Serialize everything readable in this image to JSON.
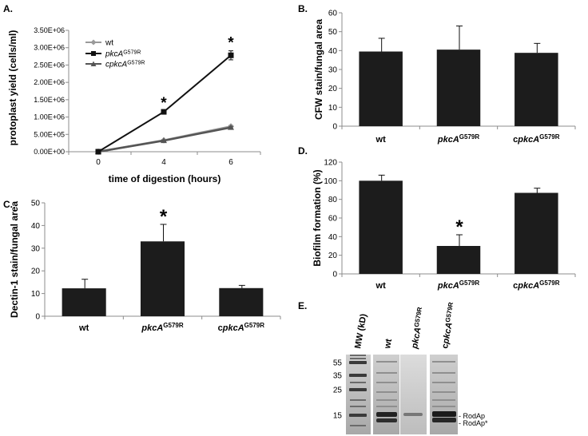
{
  "chart_data": [
    {
      "panel": "A.",
      "type": "line",
      "xlabel": "time of digestion (hours)",
      "ylabel": "protoplast yield (cells/ml)",
      "x": [
        0,
        4,
        6
      ],
      "xticks": [
        "0",
        "4",
        "6"
      ],
      "yticks": [
        "0.00E+00",
        "5.00E+05",
        "1.00E+06",
        "1.50E+06",
        "2.00E+06",
        "2.50E+06",
        "3.00E+06",
        "3.50E+06"
      ],
      "ylim": [
        0,
        3500000
      ],
      "series": [
        {
          "name": "wt",
          "values": [
            0,
            330000,
            730000
          ],
          "errors": [
            0,
            20000,
            30000
          ],
          "color": "#9a9a9a",
          "marker": "diamond"
        },
        {
          "name": "pkcA",
          "sup": "G579R",
          "values": [
            0,
            1150000,
            2780000
          ],
          "errors": [
            0,
            30000,
            130000
          ],
          "color": "#111111",
          "marker": "square"
        },
        {
          "name": "cpkcA",
          "sup": "G579R",
          "values": [
            0,
            320000,
            700000
          ],
          "errors": [
            0,
            20000,
            30000
          ],
          "color": "#555555",
          "marker": "triangle"
        }
      ],
      "annotations": [
        {
          "x": 4,
          "text": "*"
        },
        {
          "x": 6,
          "text": "*"
        }
      ]
    },
    {
      "panel": "B.",
      "type": "bar",
      "ylabel": "CFW stain/fungal area",
      "categories": [
        {
          "base": "wt",
          "sup": "",
          "prefix": ""
        },
        {
          "base": "pkcA",
          "sup": "G579R",
          "prefix": ""
        },
        {
          "base": "pkcA",
          "sup": "G579R",
          "prefix": "c"
        }
      ],
      "values": [
        39.5,
        40.5,
        38.8
      ],
      "errors": [
        7,
        12.5,
        5
      ],
      "ylim": [
        0,
        60
      ],
      "yticks": [
        "0",
        "10",
        "20",
        "30",
        "40",
        "50",
        "60"
      ]
    },
    {
      "panel": "C.",
      "type": "bar",
      "ylabel": "Dectin-1 stain/fungal area",
      "categories": [
        {
          "base": "wt",
          "sup": "",
          "prefix": ""
        },
        {
          "base": "pkcA",
          "sup": "G579R",
          "prefix": ""
        },
        {
          "base": "pkcA",
          "sup": "G579R",
          "prefix": "c"
        }
      ],
      "values": [
        12.3,
        33,
        12.4
      ],
      "errors": [
        4,
        7.5,
        1.2
      ],
      "ylim": [
        0,
        50
      ],
      "yticks": [
        "0",
        "10",
        "20",
        "30",
        "40",
        "50"
      ],
      "annotations": [
        {
          "index": 1,
          "text": "*"
        }
      ]
    },
    {
      "panel": "D.",
      "type": "bar",
      "ylabel": "Biofilm formation (%)",
      "categories": [
        {
          "base": "wt",
          "sup": "",
          "prefix": ""
        },
        {
          "base": "pkcA",
          "sup": "G579R",
          "prefix": ""
        },
        {
          "base": "pkcA",
          "sup": "G579R",
          "prefix": "c"
        }
      ],
      "values": [
        100,
        30,
        87
      ],
      "errors": [
        6,
        12,
        5
      ],
      "ylim": [
        0,
        120
      ],
      "yticks": [
        "0",
        "20",
        "40",
        "60",
        "80",
        "100",
        "120"
      ],
      "annotations": [
        {
          "index": 1,
          "text": "*"
        }
      ]
    }
  ],
  "gel": {
    "panel": "E.",
    "lanes": [
      {
        "base": "MW (kD)",
        "sup": "",
        "prefix": ""
      },
      {
        "base": "wt",
        "sup": "",
        "prefix": ""
      },
      {
        "base": "pkcA",
        "sup": "G579R",
        "prefix": ""
      },
      {
        "base": "pkcA",
        "sup": "G579R",
        "prefix": "c"
      }
    ],
    "markers": [
      "55",
      "35",
      "25",
      "15"
    ],
    "band_labels": [
      "- RodAp",
      "- RodAp*"
    ]
  }
}
